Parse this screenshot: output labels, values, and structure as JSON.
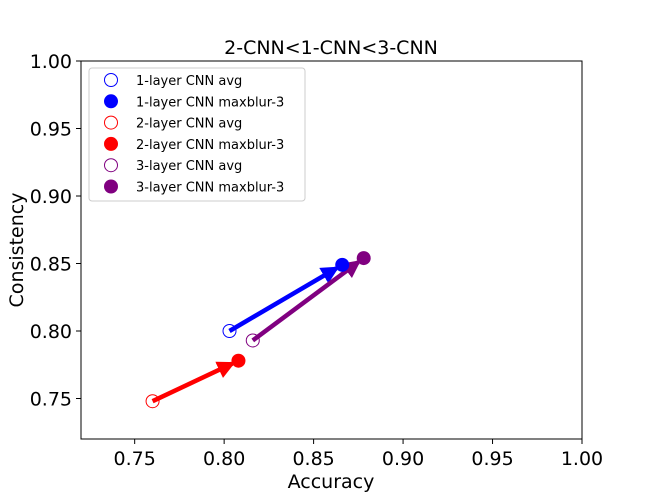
{
  "chart_data": {
    "type": "scatter",
    "title": "2-CNN<1-CNN<3-CNN",
    "xlabel": "Accuracy",
    "ylabel": "Consistency",
    "xlim": [
      0.72,
      1.0
    ],
    "ylim": [
      0.72,
      1.0
    ],
    "xticks": [
      "0.75",
      "0.80",
      "0.85",
      "0.90",
      "0.95",
      "1.00"
    ],
    "yticks": [
      "0.75",
      "0.80",
      "0.85",
      "0.90",
      "0.95",
      "1.00"
    ],
    "xtick_values": [
      0.75,
      0.8,
      0.85,
      0.9,
      0.95,
      1.0
    ],
    "ytick_values": [
      0.75,
      0.8,
      0.85,
      0.9,
      0.95,
      1.0
    ],
    "grid": false,
    "legend_position": "top-left",
    "series": [
      {
        "name": "1-layer CNN avg",
        "color": "#0000ff",
        "marker": "open-circle",
        "x": 0.803,
        "y": 0.8
      },
      {
        "name": "1-layer CNN maxblur-3",
        "color": "#0000ff",
        "marker": "filled-circle",
        "x": 0.866,
        "y": 0.849
      },
      {
        "name": "2-layer CNN avg",
        "color": "#ff0000",
        "marker": "open-circle",
        "x": 0.76,
        "y": 0.748
      },
      {
        "name": "2-layer CNN maxblur-3",
        "color": "#ff0000",
        "marker": "filled-circle",
        "x": 0.808,
        "y": 0.778
      },
      {
        "name": "3-layer CNN avg",
        "color": "#800080",
        "marker": "open-circle",
        "x": 0.816,
        "y": 0.793
      },
      {
        "name": "3-layer CNN maxblur-3",
        "color": "#800080",
        "marker": "filled-circle",
        "x": 0.878,
        "y": 0.854
      }
    ],
    "arrows": [
      {
        "color": "#0000ff",
        "from": [
          0.803,
          0.8
        ],
        "to": [
          0.866,
          0.849
        ]
      },
      {
        "color": "#ff0000",
        "from": [
          0.76,
          0.748
        ],
        "to": [
          0.808,
          0.778
        ]
      },
      {
        "color": "#800080",
        "from": [
          0.816,
          0.793
        ],
        "to": [
          0.878,
          0.854
        ]
      }
    ]
  }
}
